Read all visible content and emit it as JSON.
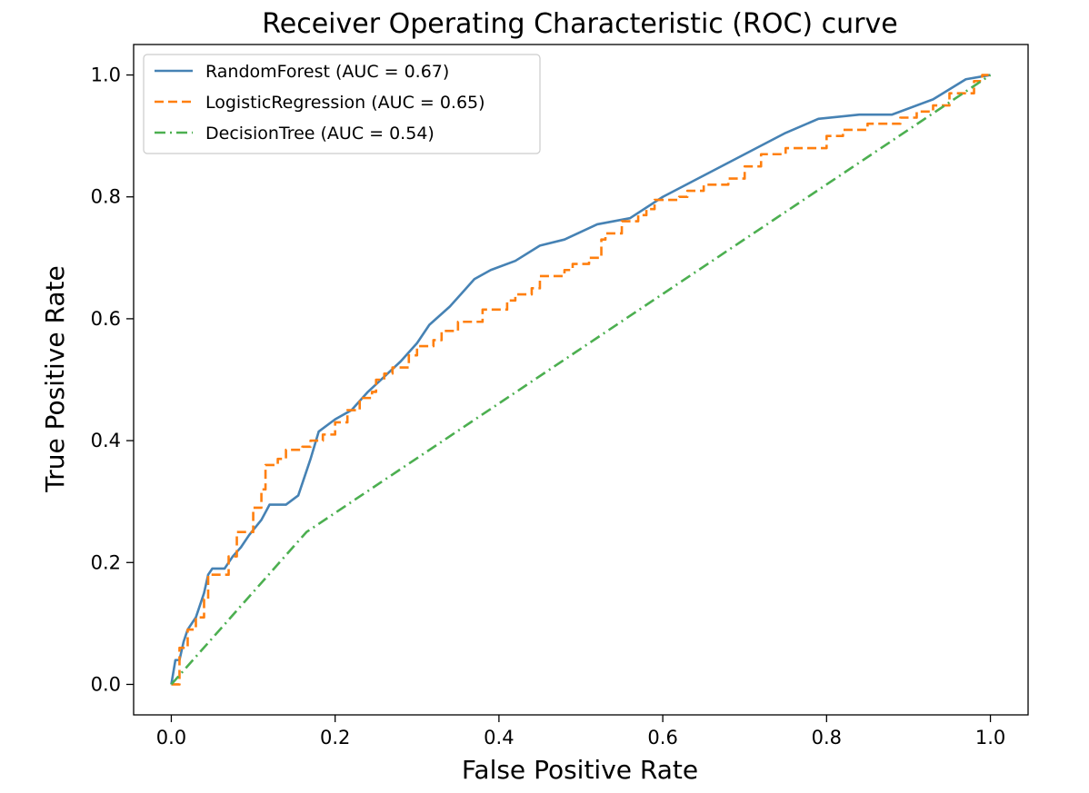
{
  "chart_data": {
    "type": "line",
    "title": "Receiver Operating Characteristic (ROC) curve",
    "xlabel": "False Positive Rate",
    "ylabel": "True Positive Rate",
    "xlim": [
      -0.046,
      1.046
    ],
    "ylim": [
      -0.05,
      1.05
    ],
    "x_ticks": [
      "0.0",
      "0.2",
      "0.4",
      "0.6",
      "0.8",
      "1.0"
    ],
    "y_ticks": [
      "0.0",
      "0.2",
      "0.4",
      "0.6",
      "0.8",
      "1.0"
    ],
    "grid": false,
    "legend_position": "top-left",
    "series": [
      {
        "name": "RandomForest (AUC = 0.67)",
        "color": "#4682b4",
        "dash": "solid",
        "points": [
          [
            0,
            0
          ],
          [
            0.005,
            0.04
          ],
          [
            0.01,
            0.04
          ],
          [
            0.015,
            0.07
          ],
          [
            0.02,
            0.09
          ],
          [
            0.03,
            0.11
          ],
          [
            0.04,
            0.15
          ],
          [
            0.045,
            0.18
          ],
          [
            0.05,
            0.19
          ],
          [
            0.065,
            0.19
          ],
          [
            0.075,
            0.21
          ],
          [
            0.085,
            0.225
          ],
          [
            0.095,
            0.245
          ],
          [
            0.11,
            0.27
          ],
          [
            0.12,
            0.295
          ],
          [
            0.14,
            0.295
          ],
          [
            0.155,
            0.31
          ],
          [
            0.17,
            0.37
          ],
          [
            0.18,
            0.415
          ],
          [
            0.2,
            0.435
          ],
          [
            0.22,
            0.45
          ],
          [
            0.24,
            0.48
          ],
          [
            0.26,
            0.505
          ],
          [
            0.28,
            0.53
          ],
          [
            0.3,
            0.56
          ],
          [
            0.315,
            0.59
          ],
          [
            0.34,
            0.62
          ],
          [
            0.37,
            0.665
          ],
          [
            0.39,
            0.68
          ],
          [
            0.42,
            0.695
          ],
          [
            0.45,
            0.72
          ],
          [
            0.48,
            0.73
          ],
          [
            0.52,
            0.755
          ],
          [
            0.56,
            0.765
          ],
          [
            0.6,
            0.8
          ],
          [
            0.65,
            0.835
          ],
          [
            0.7,
            0.87
          ],
          [
            0.75,
            0.905
          ],
          [
            0.79,
            0.928
          ],
          [
            0.84,
            0.935
          ],
          [
            0.88,
            0.935
          ],
          [
            0.93,
            0.96
          ],
          [
            0.97,
            0.993
          ],
          [
            1.0,
            1.0
          ]
        ]
      },
      {
        "name": "LogisticRegression (AUC = 0.65)",
        "color": "#ff7f0e",
        "dash": "dashed",
        "points": [
          [
            0,
            0
          ],
          [
            0.01,
            0
          ],
          [
            0.01,
            0.06
          ],
          [
            0.02,
            0.06
          ],
          [
            0.02,
            0.09
          ],
          [
            0.03,
            0.09
          ],
          [
            0.03,
            0.11
          ],
          [
            0.04,
            0.11
          ],
          [
            0.04,
            0.14
          ],
          [
            0.045,
            0.14
          ],
          [
            0.045,
            0.18
          ],
          [
            0.07,
            0.18
          ],
          [
            0.07,
            0.21
          ],
          [
            0.08,
            0.21
          ],
          [
            0.08,
            0.25
          ],
          [
            0.1,
            0.25
          ],
          [
            0.1,
            0.29
          ],
          [
            0.11,
            0.29
          ],
          [
            0.11,
            0.32
          ],
          [
            0.115,
            0.32
          ],
          [
            0.115,
            0.36
          ],
          [
            0.13,
            0.36
          ],
          [
            0.13,
            0.37
          ],
          [
            0.14,
            0.37
          ],
          [
            0.14,
            0.385
          ],
          [
            0.16,
            0.385
          ],
          [
            0.16,
            0.39
          ],
          [
            0.17,
            0.39
          ],
          [
            0.17,
            0.4
          ],
          [
            0.185,
            0.4
          ],
          [
            0.185,
            0.41
          ],
          [
            0.2,
            0.41
          ],
          [
            0.2,
            0.43
          ],
          [
            0.215,
            0.43
          ],
          [
            0.215,
            0.45
          ],
          [
            0.23,
            0.45
          ],
          [
            0.23,
            0.47
          ],
          [
            0.245,
            0.47
          ],
          [
            0.245,
            0.48
          ],
          [
            0.25,
            0.48
          ],
          [
            0.25,
            0.5
          ],
          [
            0.26,
            0.5
          ],
          [
            0.26,
            0.51
          ],
          [
            0.27,
            0.51
          ],
          [
            0.27,
            0.52
          ],
          [
            0.29,
            0.52
          ],
          [
            0.29,
            0.54
          ],
          [
            0.3,
            0.54
          ],
          [
            0.3,
            0.555
          ],
          [
            0.32,
            0.555
          ],
          [
            0.32,
            0.565
          ],
          [
            0.33,
            0.565
          ],
          [
            0.33,
            0.58
          ],
          [
            0.35,
            0.58
          ],
          [
            0.35,
            0.595
          ],
          [
            0.38,
            0.595
          ],
          [
            0.38,
            0.615
          ],
          [
            0.41,
            0.615
          ],
          [
            0.41,
            0.63
          ],
          [
            0.42,
            0.63
          ],
          [
            0.42,
            0.64
          ],
          [
            0.44,
            0.64
          ],
          [
            0.44,
            0.65
          ],
          [
            0.45,
            0.65
          ],
          [
            0.45,
            0.67
          ],
          [
            0.48,
            0.67
          ],
          [
            0.48,
            0.68
          ],
          [
            0.49,
            0.68
          ],
          [
            0.49,
            0.69
          ],
          [
            0.51,
            0.69
          ],
          [
            0.51,
            0.7
          ],
          [
            0.525,
            0.7
          ],
          [
            0.525,
            0.73
          ],
          [
            0.53,
            0.73
          ],
          [
            0.53,
            0.74
          ],
          [
            0.55,
            0.74
          ],
          [
            0.55,
            0.76
          ],
          [
            0.57,
            0.76
          ],
          [
            0.57,
            0.77
          ],
          [
            0.58,
            0.77
          ],
          [
            0.58,
            0.78
          ],
          [
            0.59,
            0.78
          ],
          [
            0.59,
            0.795
          ],
          [
            0.62,
            0.795
          ],
          [
            0.62,
            0.8
          ],
          [
            0.63,
            0.8
          ],
          [
            0.63,
            0.81
          ],
          [
            0.65,
            0.81
          ],
          [
            0.65,
            0.82
          ],
          [
            0.68,
            0.82
          ],
          [
            0.68,
            0.83
          ],
          [
            0.7,
            0.83
          ],
          [
            0.7,
            0.85
          ],
          [
            0.72,
            0.85
          ],
          [
            0.72,
            0.87
          ],
          [
            0.75,
            0.87
          ],
          [
            0.75,
            0.88
          ],
          [
            0.8,
            0.88
          ],
          [
            0.8,
            0.9
          ],
          [
            0.82,
            0.9
          ],
          [
            0.82,
            0.91
          ],
          [
            0.85,
            0.91
          ],
          [
            0.85,
            0.92
          ],
          [
            0.89,
            0.92
          ],
          [
            0.89,
            0.93
          ],
          [
            0.91,
            0.93
          ],
          [
            0.91,
            0.94
          ],
          [
            0.93,
            0.94
          ],
          [
            0.93,
            0.95
          ],
          [
            0.95,
            0.95
          ],
          [
            0.95,
            0.97
          ],
          [
            0.98,
            0.97
          ],
          [
            0.98,
            0.99
          ],
          [
            0.99,
            0.99
          ],
          [
            0.99,
            1.0
          ],
          [
            1.0,
            1.0
          ]
        ]
      },
      {
        "name": "DecisionTree (AUC = 0.54)",
        "color": "#4caf50",
        "dash": "dashdot",
        "points": [
          [
            0,
            0
          ],
          [
            0.165,
            0.25
          ],
          [
            1.0,
            1.0
          ]
        ]
      }
    ]
  }
}
